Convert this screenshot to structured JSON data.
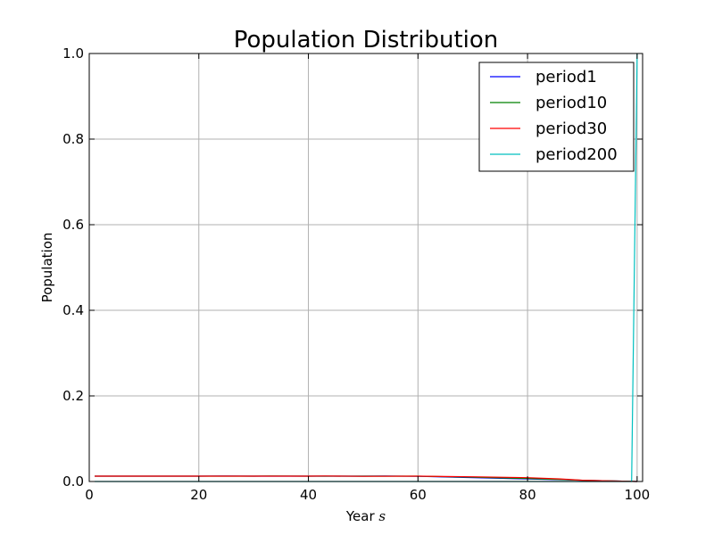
{
  "chart_data": {
    "type": "line",
    "title": "Population Distribution",
    "xlabel": "Year",
    "xlabel_math": "s",
    "ylabel": "Population",
    "xlim": [
      0,
      101
    ],
    "ylim": [
      0,
      1.0
    ],
    "xticks": [
      0,
      20,
      40,
      60,
      80,
      100
    ],
    "yticks": [
      0.0,
      0.2,
      0.4,
      0.6,
      0.8,
      1.0
    ],
    "xtick_labels": [
      "0",
      "20",
      "40",
      "60",
      "80",
      "100"
    ],
    "ytick_labels": [
      "0.0",
      "0.2",
      "0.4",
      "0.6",
      "0.8",
      "1.0"
    ],
    "grid": true,
    "legend_position": "top-right",
    "series": [
      {
        "name": "period1",
        "color": "#0000ff",
        "x": [
          1,
          10,
          20,
          24,
          30,
          40,
          50,
          54,
          60,
          70,
          80,
          90,
          100
        ],
        "y": [
          0.0125,
          0.0125,
          0.0125,
          0.013,
          0.0125,
          0.0125,
          0.0125,
          0.013,
          0.012,
          0.009,
          0.006,
          0.003,
          0.0
        ]
      },
      {
        "name": "period10",
        "color": "#008000",
        "x": [
          1,
          10,
          20,
          30,
          33,
          40,
          50,
          60,
          70,
          80,
          90,
          100
        ],
        "y": [
          0.0125,
          0.0125,
          0.0125,
          0.0125,
          0.013,
          0.0125,
          0.0125,
          0.0125,
          0.01,
          0.007,
          0.003,
          0.0
        ]
      },
      {
        "name": "period30",
        "color": "#ff0000",
        "x": [
          1,
          10,
          20,
          30,
          40,
          43,
          50,
          60,
          70,
          80,
          86,
          90,
          100
        ],
        "y": [
          0.0125,
          0.0125,
          0.0125,
          0.0125,
          0.0125,
          0.013,
          0.012,
          0.0125,
          0.011,
          0.009,
          0.006,
          0.003,
          0.0
        ]
      },
      {
        "name": "period200",
        "color": "#00bfbf",
        "x": [
          1,
          20,
          40,
          60,
          80,
          98,
          99,
          100
        ],
        "y": [
          0.0,
          0.0,
          0.0,
          0.0,
          0.0,
          0.0,
          0.0,
          1.0
        ]
      }
    ]
  }
}
